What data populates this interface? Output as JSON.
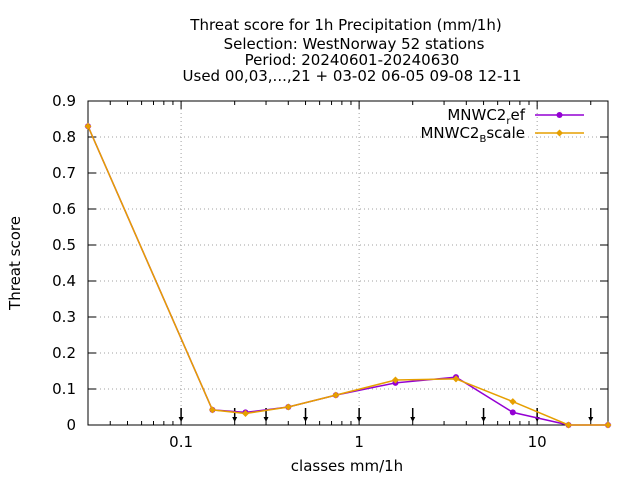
{
  "chart_data": {
    "type": "line",
    "title_lines": [
      "Threat score  for 1h Precipitation (mm/1h)",
      "Selection: WestNorway     52 stations",
      "Period: 20240601-20240630",
      "Used 00,03,...,21 + 03-02 06-05 09-08 12-11"
    ],
    "xlabel": "classes mm/1h",
    "ylabel": "Threat score",
    "xscale": "log",
    "xlim": [
      0.03,
      25
    ],
    "ylim": [
      0,
      0.9
    ],
    "xticks": [
      0.1,
      1,
      10
    ],
    "xtick_labels": [
      "0.1",
      "1",
      "10"
    ],
    "yticks": [
      0,
      0.1,
      0.2,
      0.3,
      0.4,
      0.5,
      0.6,
      0.7,
      0.8,
      0.9
    ],
    "ytick_labels": [
      "0",
      "0.1",
      "0.2",
      "0.3",
      "0.4",
      "0.5",
      "0.6",
      "0.7",
      "0.8",
      "0.9"
    ],
    "grid": true,
    "legend_position": "top-right",
    "arrow_marks_x": [
      0.1,
      0.2,
      0.3,
      0.5,
      1,
      2,
      5,
      10,
      20
    ],
    "series": [
      {
        "name_base": "MNWC2",
        "name_sub": "r",
        "name_rest": "ef",
        "color": "#9400D3",
        "x": [
          0.03,
          0.15,
          0.23,
          0.4,
          0.74,
          1.6,
          3.5,
          7.3,
          15,
          25
        ],
        "y": [
          0.83,
          0.042,
          0.035,
          0.05,
          0.083,
          0.117,
          0.133,
          0.035,
          0.0,
          0.0
        ]
      },
      {
        "name_base": "MNWC2",
        "name_sub": "B",
        "name_rest": "scale",
        "color": "#E69F00",
        "x": [
          0.03,
          0.15,
          0.23,
          0.4,
          0.74,
          1.6,
          3.5,
          7.3,
          15,
          25
        ],
        "y": [
          0.83,
          0.042,
          0.032,
          0.05,
          0.083,
          0.125,
          0.128,
          0.065,
          0.0,
          0.0
        ]
      }
    ]
  }
}
